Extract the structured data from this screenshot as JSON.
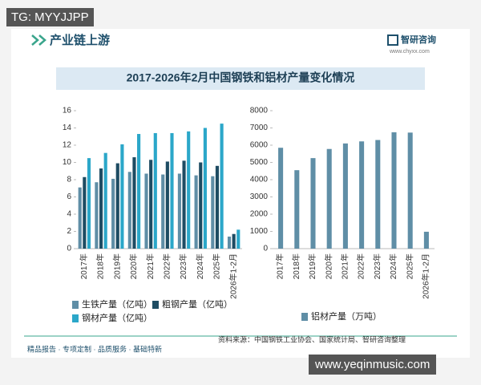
{
  "overlay_top": "TG: MYYJJPP",
  "overlay_bottom": "www.yeqinmusic.com",
  "header": {
    "title": "产业链上游",
    "brand": "智研咨询",
    "url": "www.chyxx.com"
  },
  "title": "2017-2026年2月中国钢铁和铝材产量变化情况",
  "source": "资料来源：中国钢铁工业协会、国家统计局、智研咨询整理",
  "footer": "精品报告 · 专项定制 · 品质服务 · 基础特新",
  "chart_data": [
    {
      "type": "bar",
      "categories": [
        "2017年",
        "2018年",
        "2019年",
        "2020年",
        "2021年",
        "2022年",
        "2023年",
        "2024年",
        "2025年",
        "2026年1-2月"
      ],
      "series": [
        {
          "name": "生铁产量（亿吨）",
          "color": "#5f8ea6",
          "values": [
            7.1,
            7.7,
            8.1,
            8.9,
            8.7,
            8.6,
            8.7,
            8.5,
            8.4,
            1.4
          ]
        },
        {
          "name": "粗钢产量（亿吨）",
          "color": "#1e4c63",
          "values": [
            8.3,
            9.3,
            9.9,
            10.6,
            10.3,
            10.1,
            10.2,
            10.0,
            9.6,
            1.7
          ]
        },
        {
          "name": "钢材产量（亿吨）",
          "color": "#2ba7c9",
          "values": [
            10.5,
            11.1,
            12.1,
            13.3,
            13.4,
            13.4,
            13.6,
            14.0,
            14.5,
            2.2
          ]
        }
      ],
      "ylim": [
        0,
        16
      ],
      "yticks": [
        0,
        2,
        4,
        6,
        8,
        10,
        12,
        14,
        16
      ]
    },
    {
      "type": "bar",
      "categories": [
        "2017年",
        "2018年",
        "2019年",
        "2020年",
        "2021年",
        "2022年",
        "2023年",
        "2024年",
        "2025年",
        "2026年1-2月"
      ],
      "series": [
        {
          "name": "铝材产量（万吨）",
          "color": "#5f8ea6",
          "values": [
            5850,
            4550,
            5250,
            5780,
            6100,
            6220,
            6300,
            6750,
            6730,
            980
          ]
        }
      ],
      "ylim": [
        0,
        8000
      ],
      "yticks": [
        0,
        1000,
        2000,
        3000,
        4000,
        5000,
        6000,
        7000,
        8000
      ]
    }
  ]
}
